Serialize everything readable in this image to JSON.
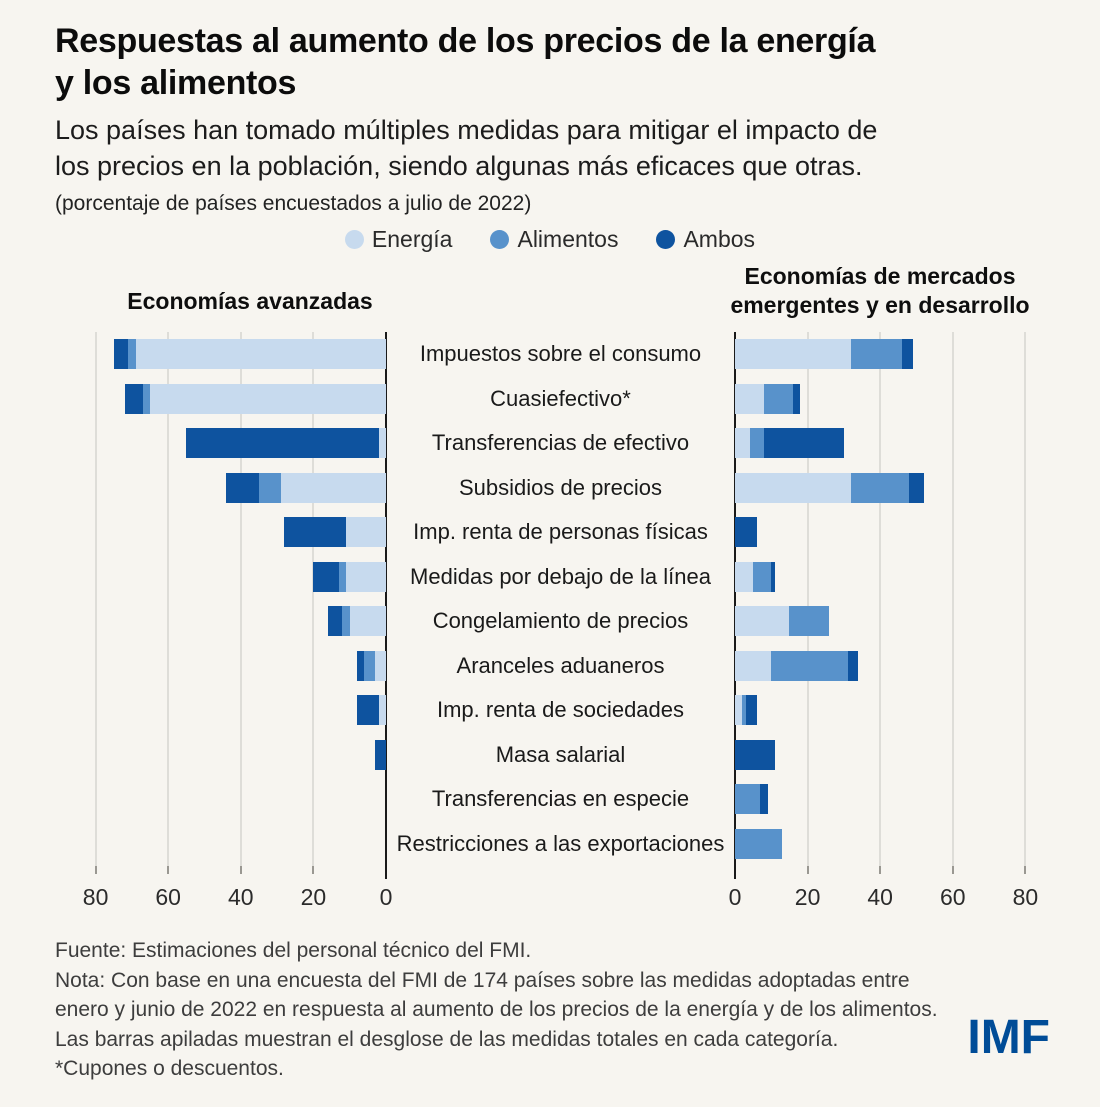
{
  "title_lines": [
    "Respuestas al aumento de los precios de la energía",
    "y los alimentos"
  ],
  "subtitle_lines": [
    "Los países han tomado múltiples medidas para mitigar el impacto de",
    "los precios en la población, siendo algunas más eficaces que otras."
  ],
  "unit_note": "(porcentaje de países encuestados a julio de 2022)",
  "legend": [
    {
      "label": "Energía",
      "color": "#c7daee"
    },
    {
      "label": "Alimentos",
      "color": "#5892cb"
    },
    {
      "label": "Ambos",
      "color": "#0e539f"
    }
  ],
  "panels": {
    "left_title": "Economías avanzadas",
    "right_title_lines": [
      "Economías de mercados",
      "emergentes y en desarrollo"
    ]
  },
  "colors": {
    "energia": "#c7daee",
    "alimentos": "#5892cb",
    "ambos": "#0e539f",
    "background": "#f7f5f0",
    "logo": "#004c97"
  },
  "chart_data": {
    "type": "bar",
    "stacked": true,
    "mirrored": true,
    "title": "Respuestas al aumento de los precios de la energía y los alimentos",
    "unit": "porcentaje de países encuestados a julio de 2022",
    "legend_position": "top-center",
    "grid": true,
    "xlim": [
      0,
      80
    ],
    "axis_ticks": [
      0,
      20,
      40,
      60,
      80
    ],
    "categories": [
      "Impuestos sobre el consumo",
      "Cuasiefectivo*",
      "Transferencias de efectivo",
      "Subsidios de precios",
      "Imp. renta de personas físicas",
      "Medidas por debajo de la línea",
      "Congelamiento de precios",
      "Aranceles aduaneros",
      "Imp. renta de sociedades",
      "Masa salarial",
      "Transferencias en especie",
      "Restricciones a las exportaciones"
    ],
    "series": [
      {
        "panel": "Economías avanzadas",
        "name": "Energía",
        "values": [
          69,
          65,
          2,
          29,
          11,
          11,
          10,
          3,
          2,
          0,
          0,
          0
        ]
      },
      {
        "panel": "Economías avanzadas",
        "name": "Alimentos",
        "values": [
          2,
          2,
          0,
          6,
          0,
          2,
          2,
          3,
          0,
          0,
          0,
          0
        ]
      },
      {
        "panel": "Economías avanzadas",
        "name": "Ambos",
        "values": [
          4,
          5,
          53,
          9,
          17,
          7,
          4,
          2,
          6,
          3,
          0,
          0
        ]
      },
      {
        "panel": "Economías de mercados emergentes y en desarrollo",
        "name": "Energía",
        "values": [
          32,
          8,
          4,
          32,
          0,
          5,
          15,
          10,
          2,
          0,
          0,
          0
        ]
      },
      {
        "panel": "Economías de mercados emergentes y en desarrollo",
        "name": "Alimentos",
        "values": [
          14,
          8,
          4,
          16,
          0,
          5,
          11,
          21,
          1,
          0,
          7,
          13
        ]
      },
      {
        "panel": "Economías de mercados emergentes y en desarrollo",
        "name": "Ambos",
        "values": [
          3,
          2,
          22,
          4,
          6,
          1,
          0,
          3,
          3,
          11,
          2,
          0
        ]
      }
    ]
  },
  "footer": {
    "lines": [
      "Fuente: Estimaciones del personal técnico del FMI.",
      "Nota: Con base en una encuesta del FMI de 174 países sobre las medidas adoptadas entre",
      "enero y  junio de 2022 en respuesta al aumento de los precios de la energía y de los alimentos.",
      "Las barras apiladas muestran el desglose de las medidas totales en cada categoría.",
      "*Cupones o descuentos."
    ]
  },
  "logo": "IMF"
}
